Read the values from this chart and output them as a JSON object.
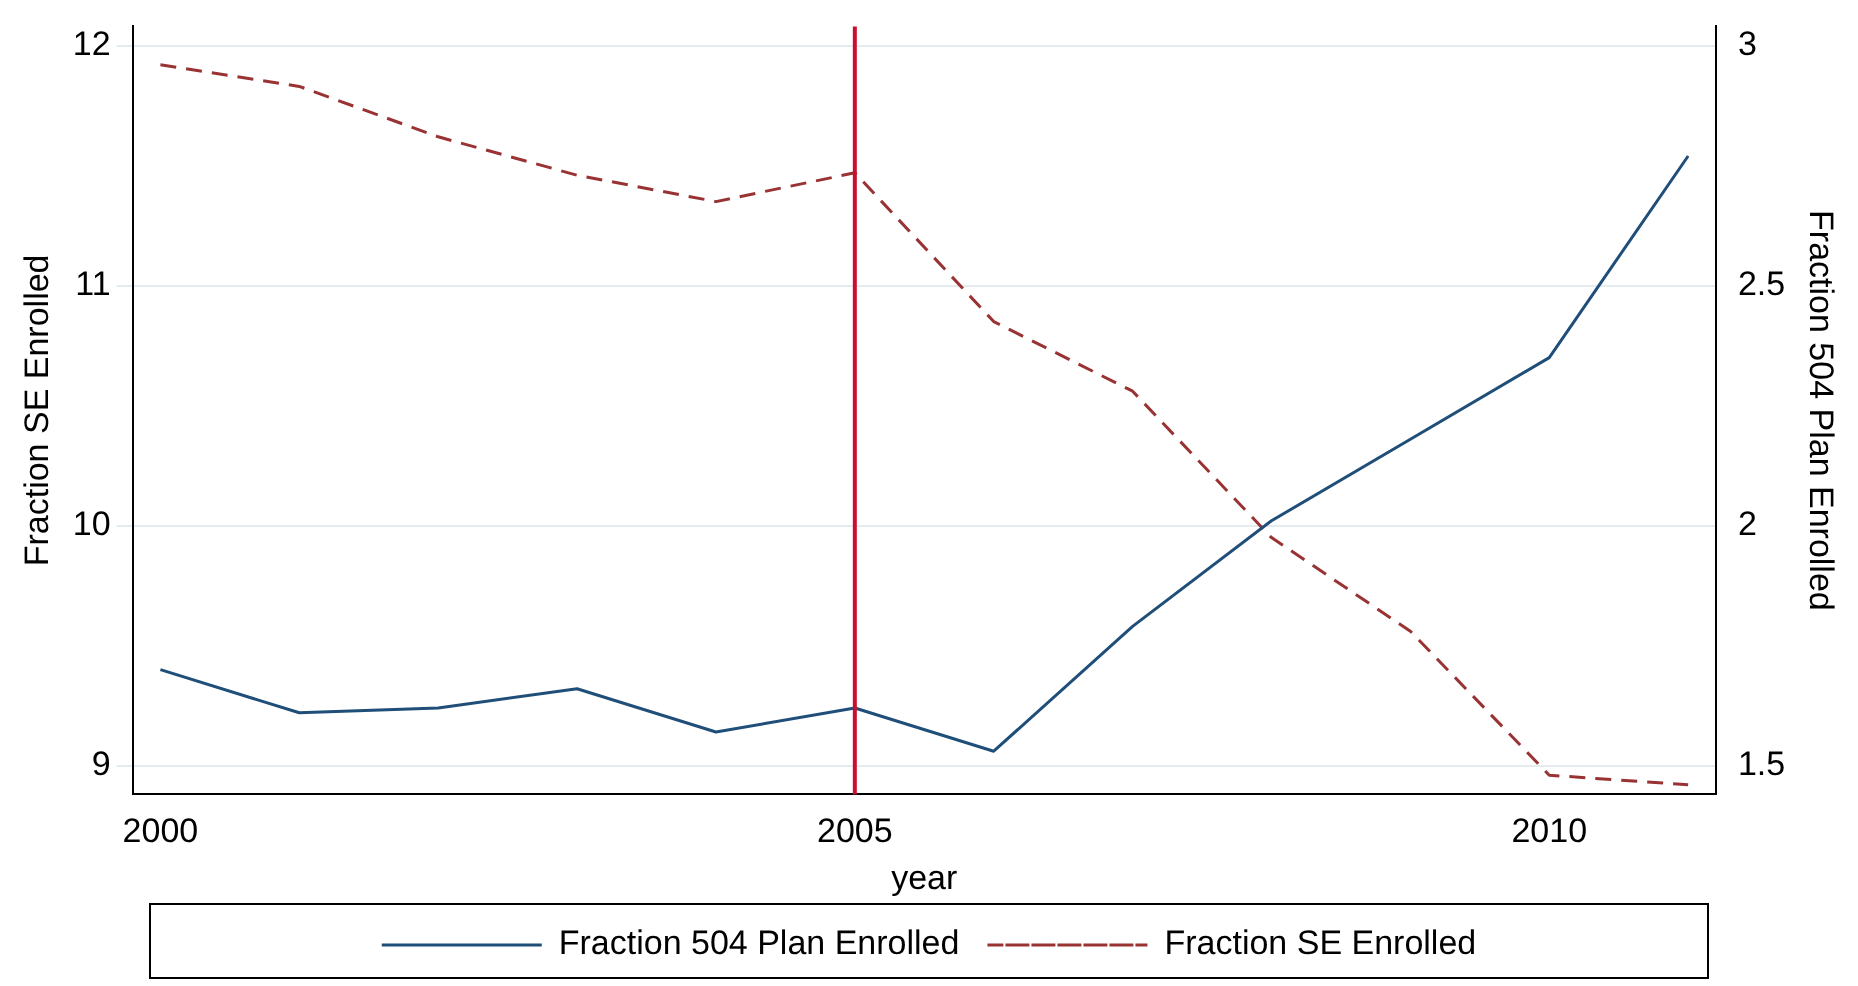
{
  "chart_data": {
    "type": "line",
    "xlabel": "year",
    "ylabel": "Fraction SE Enrolled",
    "y2label": "Fraction 504 Plan Enrolled",
    "x": [
      2000,
      2001,
      2002,
      2003,
      2004,
      2005,
      2006,
      2007,
      2008,
      2009,
      2010,
      2011
    ],
    "series": [
      {
        "name": "Fraction 504 Plan Enrolled",
        "color": "#1f4e79",
        "axis": "y2",
        "line_style": "solid",
        "values": [
          1.7,
          1.61,
          1.62,
          1.66,
          1.57,
          1.62,
          1.53,
          1.79,
          2.01,
          2.18,
          2.35,
          2.77
        ]
      },
      {
        "name": "Fraction SE Enrolled",
        "color": "#993333",
        "line_style": "dashed",
        "values": [
          11.92,
          11.83,
          11.62,
          11.46,
          11.35,
          11.47,
          10.85,
          10.56,
          9.95,
          9.56,
          8.96,
          8.92
        ]
      }
    ],
    "xlim": [
      1999.8,
      2011.2
    ],
    "xticks": [
      2000,
      2005,
      2010
    ],
    "ylim": [
      8.88,
      12.08
    ],
    "yticks": [
      9,
      10,
      11,
      12
    ],
    "y2lim": [
      1.44,
      3.04
    ],
    "y2ticks": [
      1.5,
      2,
      2.5,
      3
    ],
    "ref_lines": [
      {
        "axis": "x",
        "value": 2005,
        "color": "#c8102e"
      }
    ],
    "grid": "y",
    "legend": "bottom"
  }
}
